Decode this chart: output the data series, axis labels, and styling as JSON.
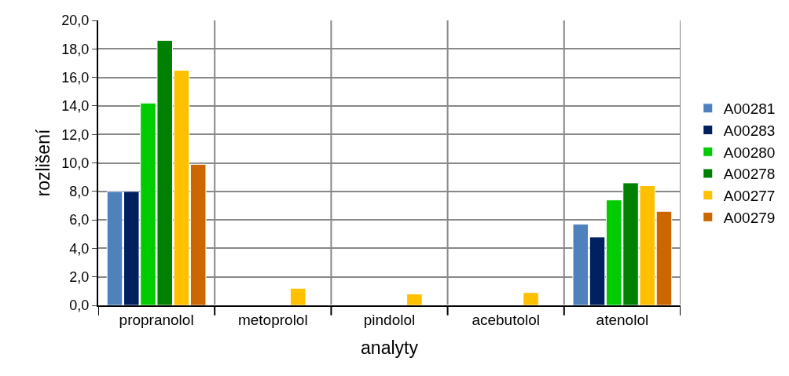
{
  "chart_data": {
    "type": "bar",
    "xlabel": "analyty",
    "ylabel": "rozlišení",
    "categories": [
      "propranolol",
      "metoprolol",
      "pindolol",
      "acebutolol",
      "atenolol"
    ],
    "series": [
      {
        "name": "A00281",
        "color": "#4f81bd",
        "values": [
          8.0,
          null,
          null,
          null,
          5.7
        ]
      },
      {
        "name": "A00283",
        "color": "#002060",
        "values": [
          8.0,
          null,
          null,
          null,
          4.8
        ]
      },
      {
        "name": "A00280",
        "color": "#00cc00",
        "values": [
          14.2,
          null,
          null,
          null,
          7.4
        ]
      },
      {
        "name": "A00278",
        "color": "#008000",
        "values": [
          18.6,
          null,
          null,
          null,
          8.6
        ]
      },
      {
        "name": "A00277",
        "color": "#ffc000",
        "values": [
          16.5,
          1.2,
          0.8,
          0.9,
          8.4
        ]
      },
      {
        "name": "A00279",
        "color": "#cc6600",
        "values": [
          9.9,
          null,
          null,
          null,
          6.6
        ]
      }
    ],
    "ylim": [
      0,
      20
    ],
    "yticks": [
      {
        "value": 0,
        "label": "0,0"
      },
      {
        "value": 2,
        "label": "2,0"
      },
      {
        "value": 4,
        "label": "4,0"
      },
      {
        "value": 6,
        "label": "6,0"
      },
      {
        "value": 8,
        "label": "8,0"
      },
      {
        "value": 10,
        "label": "10,0"
      },
      {
        "value": 12,
        "label": "12,0"
      },
      {
        "value": 14,
        "label": "14,0"
      },
      {
        "value": 16,
        "label": "16,0"
      },
      {
        "value": 18,
        "label": "18,0"
      },
      {
        "value": 20,
        "label": "20,0"
      }
    ],
    "grid": true,
    "legend": "right"
  }
}
